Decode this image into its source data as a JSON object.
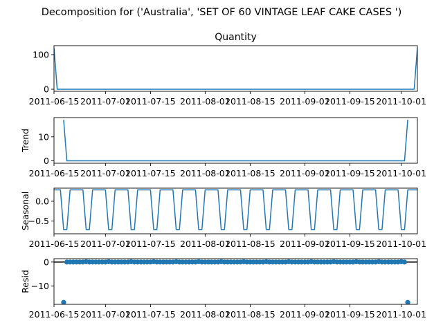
{
  "suptitle": "Decomposition for ('Australia', 'SET OF 60 VINTAGE LEAF CAKE CASES ')",
  "colors": {
    "series": "#1f77b4",
    "axis": "#000000",
    "zero_line": "#000000"
  },
  "chart_data": [
    {
      "type": "line",
      "panel": "observed",
      "title": "Quantity",
      "ylabel": "",
      "x_start": "2011-06-15",
      "x_end": "2011-10-06",
      "xlim": [
        "2011-06-15",
        "2011-10-06"
      ],
      "ylim": [
        -6,
        126
      ],
      "yticks": [
        0,
        100
      ],
      "xtick_labels": [
        "2011-06-15",
        "2011-07-01",
        "2011-07-15",
        "2011-08-01",
        "2011-08-15",
        "2011-09-01",
        "2011-09-15",
        "2011-10-01"
      ],
      "points": [
        [
          "2011-06-15",
          120
        ],
        [
          "2011-06-16",
          0
        ],
        [
          "2011-10-05",
          0
        ],
        [
          "2011-10-06",
          120
        ]
      ],
      "note_default": "all other days 0"
    },
    {
      "type": "line",
      "panel": "trend",
      "title": "",
      "ylabel": "Trend",
      "xlim": [
        "2011-06-15",
        "2011-10-06"
      ],
      "ylim": [
        -1,
        18
      ],
      "yticks": [
        0,
        10
      ],
      "xtick_labels": [
        "2011-06-15",
        "2011-07-01",
        "2011-07-15",
        "2011-08-01",
        "2011-08-15",
        "2011-09-01",
        "2011-09-15",
        "2011-10-01"
      ],
      "points": [
        [
          "2011-06-18",
          17.1
        ],
        [
          "2011-06-19",
          0
        ],
        [
          "2011-10-02",
          0
        ],
        [
          "2011-10-03",
          17.1
        ]
      ]
    },
    {
      "type": "line",
      "panel": "seasonal",
      "title": "",
      "ylabel": "Seasonal",
      "xlim": [
        "2011-06-15",
        "2011-10-06"
      ],
      "ylim": [
        -0.82,
        0.33
      ],
      "yticks": [
        0.0,
        -0.5
      ],
      "ytick_labels": [
        "0.0",
        "−0.5"
      ],
      "xtick_labels": [
        "2011-06-15",
        "2011-07-01",
        "2011-07-15",
        "2011-08-01",
        "2011-08-15",
        "2011-09-01",
        "2011-09-15",
        "2011-10-01"
      ],
      "period_days": 7,
      "pattern": [
        0.286,
        0.286,
        0.286,
        -0.714,
        -0.714,
        0.286,
        0.286
      ]
    },
    {
      "type": "scatter",
      "panel": "resid",
      "title": "",
      "ylabel": "Resid",
      "xlim": [
        "2011-06-15",
        "2011-10-06"
      ],
      "ylim": [
        -17.6,
        1.4
      ],
      "yticks": [
        0,
        -10
      ],
      "ytick_labels": [
        "0",
        "−10"
      ],
      "xtick_labels": [
        "2011-06-15",
        "2011-07-01",
        "2011-07-15",
        "2011-08-01",
        "2011-08-15",
        "2011-09-01",
        "2011-09-15",
        "2011-10-01"
      ],
      "range_start": "2011-06-18",
      "range_end": "2011-10-03",
      "outliers": [
        [
          "2011-06-18",
          -16.8
        ],
        [
          "2011-10-03",
          -16.8
        ]
      ],
      "zero_line": true
    }
  ]
}
